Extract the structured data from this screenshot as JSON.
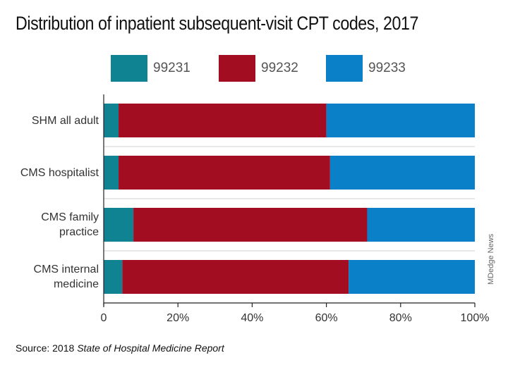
{
  "header": {
    "title": "Distribution of inpatient subsequent-visit CPT codes, 2017"
  },
  "footer": {
    "source_label": "Source:",
    "source_text": "2018",
    "source_title": "State of Hospital Medicine Report",
    "credit": "MDedge News"
  },
  "colors": {
    "c99231": "#0f8391",
    "c99232": "#a30d22",
    "c99233": "#0a80c8",
    "separator": "#d0d0d0",
    "axis": "#222222"
  },
  "chart_data": {
    "type": "bar",
    "orientation": "horizontal",
    "stacked": true,
    "categories": [
      "SHM all adult",
      "CMS hospitalist",
      "CMS family practice",
      "CMS internal medicine"
    ],
    "category_lines": [
      [
        "SHM all adult"
      ],
      [
        "CMS hospitalist"
      ],
      [
        "CMS family",
        "practice"
      ],
      [
        "CMS internal",
        "medicine"
      ]
    ],
    "series": [
      {
        "name": "99231",
        "values": [
          4,
          4,
          8,
          5
        ]
      },
      {
        "name": "99232",
        "values": [
          56,
          57,
          63,
          61
        ]
      },
      {
        "name": "99233",
        "values": [
          40,
          39,
          29,
          34
        ]
      }
    ],
    "xlim": [
      0,
      100
    ],
    "x_ticks": [
      0,
      20,
      40,
      60,
      80,
      100
    ],
    "x_tick_labels": [
      "0",
      "20%",
      "40%",
      "60%",
      "80%",
      "100%"
    ],
    "legend_position": "top",
    "grid": false
  }
}
